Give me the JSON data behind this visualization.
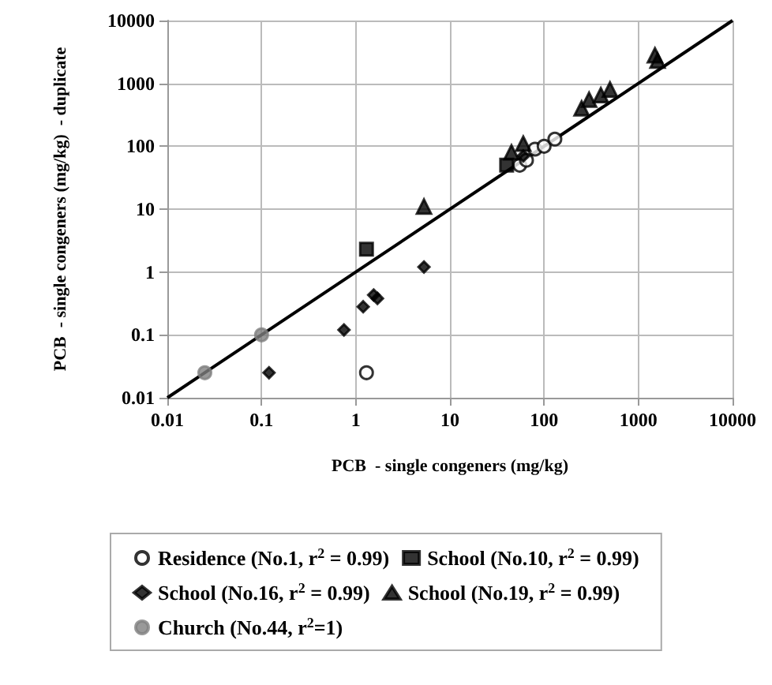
{
  "chart_data": {
    "type": "scatter",
    "xlabel": "PCB  - single congeners (mg/kg)",
    "ylabel": "PCB  - single congeners (mg/kg)  - duplicate",
    "log": "xy",
    "grid": true,
    "legend": "bottom",
    "xlim": [
      0.01,
      10000
    ],
    "ylim": [
      0.01,
      10000
    ],
    "xticks": [
      0.01,
      0.1,
      1,
      10,
      100,
      1000,
      10000
    ],
    "yticks": [
      0.01,
      0.1,
      1,
      10,
      100,
      1000,
      10000
    ],
    "series": [
      {
        "name": "Residence (No.1, r$^{2}$ = 0.99)",
        "color": "#ffffff",
        "marker": "circle",
        "x": [
          1.3,
          55,
          65,
          80,
          100,
          130
        ],
        "values": [
          0.025,
          50,
          60,
          90,
          100,
          130
        ]
      },
      {
        "name": "School (No.10, r$^{2}$ = 0.99)",
        "color": "#000000",
        "marker": "square",
        "x": [
          1.3,
          40
        ],
        "values": [
          2.3,
          50
        ]
      },
      {
        "name": "School (No.16, r$^{2}$ = 0.99)",
        "color": "#000000",
        "marker": "diamond",
        "x": [
          0.12,
          0.75,
          1.2,
          1.55,
          1.7,
          5.3,
          60
        ],
        "values": [
          0.025,
          0.12,
          0.28,
          0.43,
          0.38,
          1.2,
          70
        ]
      },
      {
        "name": "School (No.19, r$^{2}$ = 0.99)",
        "color": "#000000",
        "marker": "triangle",
        "x": [
          5.3,
          45,
          60,
          250,
          300,
          400,
          500,
          1500,
          1600
        ],
        "values": [
          11,
          80,
          110,
          400,
          550,
          650,
          800,
          2800,
          2300
        ]
      },
      {
        "name": "Church (No.44, r$^{2}$=1)",
        "color": "#808080",
        "marker": "circle",
        "x": [
          0.025,
          0.1
        ],
        "values": [
          0.025,
          0.1
        ]
      },
      {
        "type": "line",
        "color": "#000000",
        "line_style": "solid",
        "marker": "none",
        "x": [
          0.01,
          10000
        ],
        "values": [
          0.01,
          10000
        ]
      }
    ]
  }
}
